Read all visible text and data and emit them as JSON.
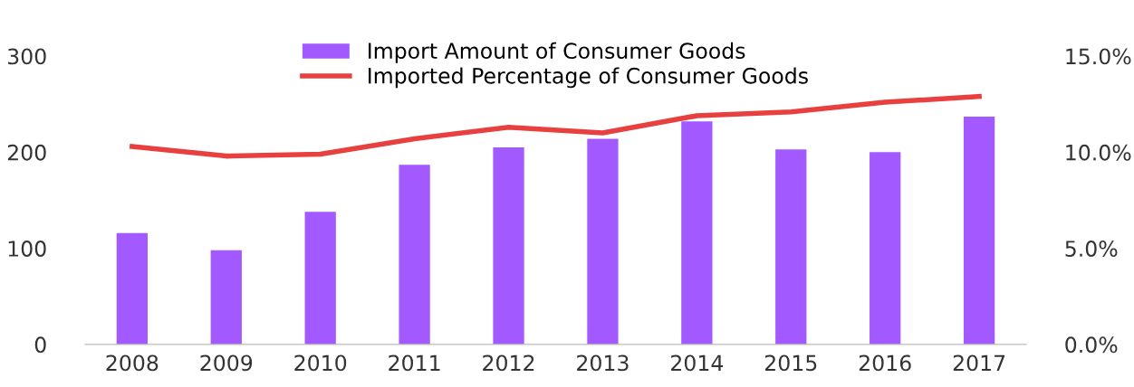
{
  "chart_data": {
    "type": "bar",
    "categories": [
      "2008",
      "2009",
      "2010",
      "2011",
      "2012",
      "2013",
      "2014",
      "2015",
      "2016",
      "2017"
    ],
    "series": [
      {
        "name": "Import Amount of Consumer Goods",
        "color": "#a259ff",
        "values": [
          116,
          98,
          138,
          187,
          205,
          214,
          232,
          203,
          200,
          237
        ]
      },
      {
        "name": "Imported Percentage of Consumer Goods",
        "type": "line",
        "axis": "y2",
        "color": "#e8403f",
        "values": [
          10.3,
          9.8,
          9.9,
          10.7,
          11.3,
          11.0,
          11.9,
          12.1,
          12.6,
          12.9
        ]
      }
    ],
    "ylim": [
      0,
      300
    ],
    "yticks": [
      0,
      100,
      200,
      300
    ],
    "y2lim": [
      0,
      15
    ],
    "y2ticks": [
      {
        "value": 0,
        "label": "0.0%"
      },
      {
        "value": 5,
        "label": "5.0%"
      },
      {
        "value": 10,
        "label": "10.0%"
      },
      {
        "value": 15,
        "label": "15.0%"
      }
    ],
    "grid": false,
    "legend": "top",
    "marker": "none",
    "line_style": "solid"
  }
}
